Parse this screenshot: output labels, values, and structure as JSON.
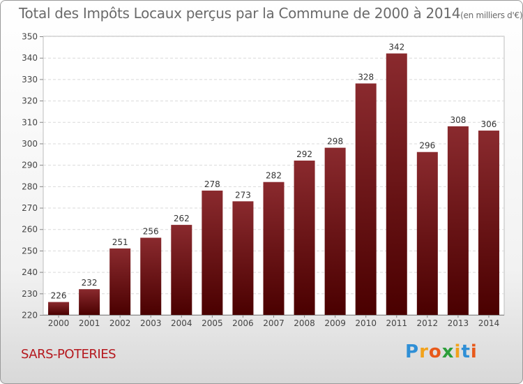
{
  "chart_data": {
    "type": "bar",
    "title": "Total des Impôts Locaux perçus par la Commune de 2000 à 2014",
    "unit": "(en milliers d'€)",
    "categories": [
      "2000",
      "2001",
      "2002",
      "2003",
      "2004",
      "2005",
      "2006",
      "2007",
      "2008",
      "2009",
      "2010",
      "2011",
      "2012",
      "2013",
      "2014"
    ],
    "values": [
      226,
      232,
      251,
      256,
      262,
      278,
      273,
      282,
      292,
      298,
      328,
      342,
      296,
      308,
      306
    ],
    "ylim": [
      220,
      350
    ],
    "yticks": [
      220,
      230,
      240,
      250,
      260,
      270,
      280,
      290,
      300,
      310,
      320,
      330,
      340,
      350
    ],
    "xlabel": "",
    "ylabel": "",
    "grid": true,
    "bar_color_top": "#8a2a2e",
    "bar_color_bottom": "#4a0000"
  },
  "commune": "SARS-POTERIES",
  "logo": {
    "letters": [
      "P",
      "r",
      "o",
      "x",
      "i",
      "t",
      "i"
    ]
  }
}
